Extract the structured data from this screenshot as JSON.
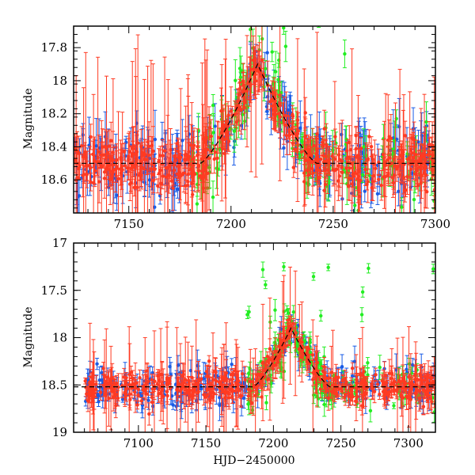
{
  "chart_data": [
    {
      "type": "scatter",
      "panel": "top",
      "title": "",
      "xlabel": "",
      "ylabel": "Magnitude",
      "xlim": [
        7123,
        7300
      ],
      "ylim": [
        18.8,
        17.67
      ],
      "y_inverted": true,
      "x_ticks": [
        7150,
        7200,
        7250,
        7300
      ],
      "x_tick_labels": [
        "7150",
        "7200",
        "7250",
        "7300"
      ],
      "y_ticks": [
        17.8,
        18.0,
        18.2,
        18.4,
        18.6
      ],
      "y_tick_labels": [
        "17.8",
        "18",
        "18.2",
        "18.4",
        "18.6"
      ],
      "series": [
        {
          "name": "green band",
          "color": "#22ee22"
        },
        {
          "name": "blue band",
          "color": "#1a5ce6"
        },
        {
          "name": "red band",
          "color": "#ff3a22"
        },
        {
          "name": "model",
          "color": "#000000",
          "style": "dashed"
        }
      ],
      "light_curve": {
        "baseline_mag": 18.5,
        "peak_time": 7213,
        "peak_mag": 17.9,
        "rise_start": 7185,
        "decay_end": 7242
      }
    },
    {
      "type": "scatter",
      "panel": "bottom",
      "title": "",
      "xlabel": "HJD−2450000",
      "ylabel": "Magnitude",
      "xlim": [
        7052,
        7320
      ],
      "ylim": [
        19.0,
        17.0
      ],
      "y_inverted": true,
      "x_ticks": [
        7100,
        7150,
        7200,
        7250,
        7300
      ],
      "x_tick_labels": [
        "7100",
        "7150",
        "7200",
        "7250",
        "7300"
      ],
      "y_ticks": [
        17.0,
        17.5,
        18.0,
        18.5,
        19.0
      ],
      "y_tick_labels": [
        "17",
        "17.5",
        "18",
        "18.5",
        "19"
      ],
      "series": [
        {
          "name": "green band",
          "color": "#22ee22"
        },
        {
          "name": "blue band",
          "color": "#1a5ce6"
        },
        {
          "name": "red band",
          "color": "#ff3a22"
        },
        {
          "name": "model",
          "color": "#000000",
          "style": "dashed"
        }
      ],
      "light_curve": {
        "baseline_mag": 18.52,
        "peak_time": 7213,
        "peak_mag": 17.9,
        "rise_start": 7185,
        "decay_end": 7242
      }
    }
  ]
}
